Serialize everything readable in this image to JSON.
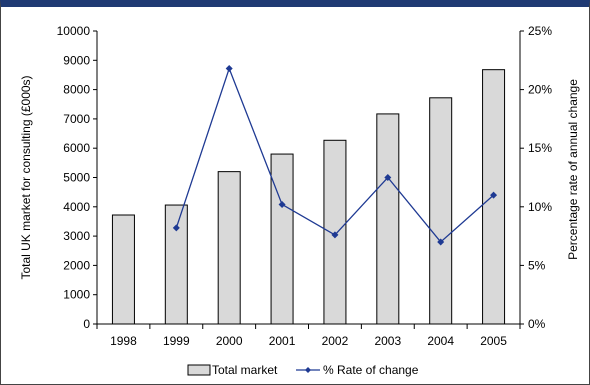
{
  "chart_data": {
    "type": "bar",
    "categories": [
      "1998",
      "1999",
      "2000",
      "2001",
      "2002",
      "2003",
      "2004",
      "2005"
    ],
    "series": [
      {
        "name": "Total market",
        "type": "bar",
        "axis": "left",
        "values": [
          3720,
          4060,
          5200,
          5800,
          6270,
          7170,
          7720,
          8680
        ],
        "color": "#d9d9d9"
      },
      {
        "name": "% Rate of change",
        "type": "line",
        "axis": "right",
        "values": [
          null,
          8.2,
          21.8,
          10.2,
          7.6,
          12.5,
          7.0,
          11.0
        ],
        "color": "#1f3a93"
      }
    ],
    "ylabel": "Total UK market for consulting (£000s)",
    "y2label": "Percentage rate of annual change",
    "ylim": [
      0,
      10000
    ],
    "y2lim": [
      0,
      25
    ],
    "yticks": [
      0,
      1000,
      2000,
      3000,
      4000,
      5000,
      6000,
      7000,
      8000,
      9000,
      10000
    ],
    "y2ticks": [
      0,
      5,
      10,
      15,
      20,
      25
    ],
    "y2tick_labels": [
      "0%",
      "5%",
      "10%",
      "15%",
      "20%",
      "25%"
    ],
    "legend": {
      "position": "bottom",
      "entries": [
        "Total market",
        "% Rate of change"
      ]
    },
    "grid": false
  }
}
